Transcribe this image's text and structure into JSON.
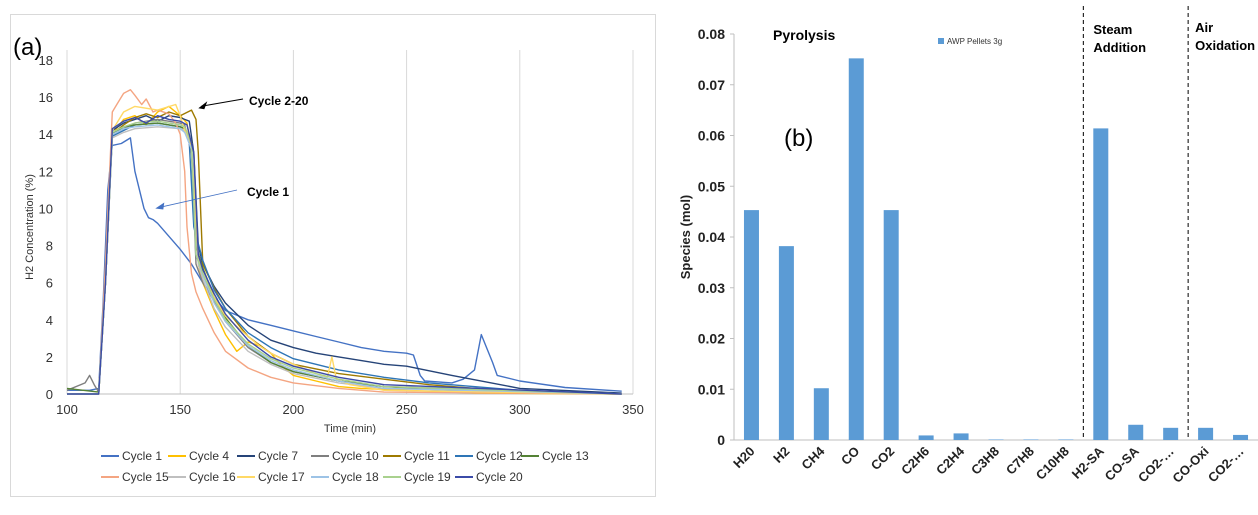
{
  "figure": {
    "panel_a_label": "(a)",
    "panel_b_label": "(b)"
  },
  "chart_data": [
    {
      "type": "line",
      "panel": "(a)",
      "title": "",
      "xlabel": "Time (min)",
      "ylabel": "H2 Concentration (%)",
      "xlim": [
        100,
        350
      ],
      "ylim": [
        0,
        18
      ],
      "xticks": [
        100,
        150,
        200,
        250,
        300,
        350
      ],
      "yticks": [
        0,
        2,
        4,
        6,
        8,
        10,
        12,
        14,
        16,
        18
      ],
      "grid": "vertical",
      "legend_position": "bottom",
      "annotations": [
        {
          "text": "Cycle 2-20",
          "points_to": [
            158,
            15.4
          ]
        },
        {
          "text": "Cycle 1",
          "points_to": [
            139,
            10.0
          ]
        }
      ],
      "series": [
        {
          "name": "Cycle 1",
          "color": "#4472c4",
          "x": [
            100,
            110,
            114,
            116,
            118,
            120,
            124,
            128,
            130,
            134,
            136,
            138,
            140,
            145,
            150,
            155,
            160,
            165,
            170,
            180,
            190,
            200,
            210,
            220,
            230,
            240,
            250,
            253,
            256,
            258,
            270,
            275,
            280,
            283,
            285,
            288,
            290,
            300,
            320,
            345
          ],
          "y": [
            0.2,
            0.2,
            0.3,
            5,
            11,
            13.4,
            13.5,
            13.8,
            12,
            10,
            9.5,
            9.4,
            9.2,
            8.5,
            7.8,
            7,
            6,
            5.2,
            4.5,
            4,
            3.7,
            3.4,
            3.1,
            2.8,
            2.5,
            2.3,
            2.2,
            2.1,
            1.0,
            0.7,
            0.6,
            0.8,
            1.3,
            3.2,
            2.6,
            1.7,
            1.0,
            0.7,
            0.35,
            0.15
          ]
        },
        {
          "name": "Cycle 4",
          "color": "#ffc000",
          "x": [
            100,
            114,
            117,
            120,
            125,
            130,
            135,
            140,
            145,
            150,
            153,
            155,
            158,
            160,
            165,
            170,
            175,
            180,
            185,
            190,
            195,
            200,
            210,
            220,
            230,
            250,
            280,
            345
          ],
          "y": [
            0,
            0,
            6,
            14,
            14.8,
            15,
            14.5,
            15.2,
            15.5,
            15,
            14.6,
            13,
            7,
            6,
            4.5,
            3.2,
            2.3,
            2.8,
            2.6,
            2.2,
            1.5,
            1.0,
            0.7,
            0.4,
            0.3,
            0.2,
            0.05,
            0
          ]
        },
        {
          "name": "Cycle 7",
          "color": "#264478",
          "x": [
            100,
            114,
            117,
            120,
            125,
            130,
            135,
            140,
            145,
            150,
            152,
            154,
            156,
            158,
            160,
            165,
            170,
            180,
            190,
            200,
            210,
            220,
            230,
            240,
            250,
            270,
            300,
            345
          ],
          "y": [
            0,
            0,
            6,
            14.2,
            14.6,
            14.8,
            15,
            14.7,
            15,
            14.9,
            14.8,
            14.7,
            13,
            8,
            7,
            5.8,
            4.9,
            3.7,
            2.9,
            2.5,
            2.2,
            2.0,
            1.8,
            1.6,
            1.5,
            1.0,
            0.3,
            0.05
          ]
        },
        {
          "name": "Cycle 10",
          "color": "#7f7f7f",
          "x": [
            100,
            108,
            110,
            112,
            114,
            117,
            120,
            125,
            130,
            140,
            150,
            152,
            155,
            157,
            160,
            165,
            170,
            180,
            190,
            200,
            220,
            240,
            345
          ],
          "y": [
            0.2,
            0.6,
            1.0,
            0.5,
            0.1,
            6,
            14,
            14.3,
            14.6,
            14.8,
            14.6,
            14.5,
            13,
            7,
            6,
            5,
            3.9,
            2.5,
            1.7,
            1.2,
            0.7,
            0.4,
            0
          ]
        },
        {
          "name": "Cycle 11",
          "color": "#9e7a00",
          "x": [
            100,
            114,
            117,
            120,
            125,
            130,
            135,
            140,
            145,
            150,
            155,
            157,
            158,
            160,
            165,
            170,
            180,
            190,
            200,
            220,
            240,
            260,
            300,
            345
          ],
          "y": [
            0,
            0,
            6,
            14,
            14.5,
            14.9,
            15.1,
            14.9,
            15.2,
            15,
            15.3,
            14.8,
            13,
            7,
            5.7,
            4.6,
            3.1,
            2.2,
            1.6,
            1.1,
            0.8,
            0.5,
            0.1,
            0
          ]
        },
        {
          "name": "Cycle 12",
          "color": "#2e75b6",
          "x": [
            100,
            114,
            117,
            120,
            125,
            130,
            140,
            150,
            152,
            154,
            156,
            160,
            165,
            170,
            180,
            190,
            200,
            220,
            240,
            260,
            300,
            345
          ],
          "y": [
            0,
            0,
            6,
            13.9,
            14.2,
            14.5,
            14.6,
            14.4,
            14.3,
            13.5,
            9,
            7.2,
            5.6,
            4.6,
            3.3,
            2.5,
            1.9,
            1.3,
            0.9,
            0.6,
            0.2,
            0
          ]
        },
        {
          "name": "Cycle 13",
          "color": "#548235",
          "x": [
            100,
            114,
            117,
            120,
            125,
            130,
            140,
            150,
            152,
            155,
            157,
            160,
            165,
            170,
            180,
            190,
            200,
            220,
            240,
            280,
            345
          ],
          "y": [
            0.3,
            0.1,
            6,
            14,
            14.4,
            14.5,
            14.6,
            14.4,
            14.3,
            13.6,
            8,
            6.8,
            5.2,
            4.1,
            2.6,
            1.7,
            1.2,
            0.7,
            0.4,
            0.1,
            0
          ]
        },
        {
          "name": "Cycle 15",
          "color": "#f4a582",
          "x": [
            100,
            114,
            117,
            120,
            122,
            125,
            128,
            130,
            133,
            135,
            138,
            140,
            145,
            148,
            150,
            152,
            153,
            155,
            157,
            160,
            165,
            170,
            180,
            190,
            200,
            220,
            240,
            345
          ],
          "y": [
            0,
            0,
            7,
            15.2,
            15.6,
            16.2,
            16.4,
            16.1,
            15.6,
            15.9,
            15.2,
            15.3,
            15.1,
            14.6,
            14.0,
            12,
            9,
            6.5,
            5.5,
            4.6,
            3.3,
            2.3,
            1.4,
            0.9,
            0.6,
            0.3,
            0.1,
            0
          ]
        },
        {
          "name": "Cycle 16",
          "color": "#bfbfbf",
          "x": [
            100,
            114,
            117,
            120,
            125,
            130,
            140,
            150,
            152,
            155,
            158,
            160,
            165,
            170,
            180,
            190,
            200,
            220,
            240,
            345
          ],
          "y": [
            0,
            0,
            6,
            13.8,
            14.1,
            14.3,
            14.4,
            14.3,
            14.2,
            13.5,
            7,
            6.2,
            4.6,
            3.6,
            2.3,
            1.6,
            1.1,
            0.6,
            0.3,
            0
          ]
        },
        {
          "name": "Cycle 17",
          "color": "#ffd966",
          "x": [
            100,
            114,
            117,
            120,
            125,
            130,
            140,
            148,
            150,
            152,
            155,
            158,
            160,
            165,
            170,
            180,
            185,
            190,
            200,
            210,
            215,
            217,
            219,
            225,
            240,
            345
          ],
          "y": [
            0,
            0,
            6,
            14.2,
            15.2,
            15.5,
            15.3,
            15.6,
            15,
            14.2,
            13.2,
            7.5,
            6.5,
            5.2,
            4.2,
            3.1,
            2.6,
            2.2,
            1.6,
            1.1,
            0.9,
            2.0,
            0.8,
            0.5,
            0.2,
            0
          ]
        },
        {
          "name": "Cycle 18",
          "color": "#9dc3e6",
          "x": [
            100,
            114,
            117,
            120,
            125,
            130,
            140,
            150,
            152,
            155,
            157,
            160,
            165,
            170,
            180,
            190,
            200,
            220,
            240,
            345
          ],
          "y": [
            0,
            0,
            6,
            14,
            14.3,
            14.4,
            14.5,
            14.3,
            14.1,
            13.2,
            7.5,
            6.4,
            4.9,
            3.9,
            2.6,
            1.8,
            1.3,
            0.7,
            0.3,
            0
          ]
        },
        {
          "name": "Cycle 19",
          "color": "#a9d18e",
          "x": [
            100,
            114,
            117,
            120,
            125,
            130,
            140,
            150,
            152,
            155,
            157,
            160,
            165,
            170,
            180,
            190,
            200,
            220,
            240,
            345
          ],
          "y": [
            0,
            0,
            6,
            14.1,
            14.4,
            14.6,
            14.7,
            14.5,
            14.4,
            13.5,
            7.5,
            6.5,
            5.1,
            4.0,
            2.7,
            1.9,
            1.4,
            0.8,
            0.4,
            0
          ]
        },
        {
          "name": "Cycle 20",
          "color": "#3b4ba8",
          "x": [
            100,
            114,
            117,
            120,
            125,
            130,
            135,
            140,
            145,
            150,
            153,
            156,
            158,
            160,
            165,
            170,
            180,
            190,
            200,
            220,
            240,
            345
          ],
          "y": [
            0,
            0,
            6,
            14.3,
            14.7,
            14.9,
            14.6,
            15,
            14.8,
            14.7,
            14.5,
            13,
            7.5,
            6.7,
            5.4,
            4.3,
            2.9,
            2.0,
            1.5,
            0.9,
            0.5,
            0
          ]
        }
      ]
    },
    {
      "type": "bar",
      "panel": "(b)",
      "title": "",
      "xlabel": "",
      "ylabel": "Species (mol)",
      "ylim": [
        0,
        0.08
      ],
      "yticks": [
        0,
        0.01,
        0.02,
        0.03,
        0.04,
        0.05,
        0.06,
        0.07,
        0.08
      ],
      "ytick_labels": [
        "0",
        "0.01",
        "0.02",
        "0.03",
        "0.04",
        "0.05",
        "0.06",
        "0.07",
        "0.08"
      ],
      "grid": false,
      "legend_position": "top-center",
      "categories": [
        "H20",
        "H2",
        "CH4",
        "CO",
        "CO2",
        "C2H6",
        "C2H4",
        "C3H8",
        "C7H8",
        "C10H8",
        "H2-SA",
        "CO-SA",
        "CO2-…",
        "CO-Oxi",
        "CO2-…"
      ],
      "series": [
        {
          "name": "AWP Pellets 3g",
          "color": "#5b9bd5",
          "values": [
            0.0453,
            0.0382,
            0.0102,
            0.0752,
            0.0453,
            0.0009,
            0.0013,
            0.0001,
            0.0001,
            0.0001,
            0.0614,
            0.003,
            0.0024,
            0.0024,
            0.001
          ]
        }
      ],
      "annotations": [
        {
          "text": "Pyrolysis",
          "region": "pyrolysis"
        },
        {
          "text": "Steam",
          "region": "steam"
        },
        {
          "text": "Addition",
          "region": "steam"
        },
        {
          "text": "Air",
          "region": "air"
        },
        {
          "text": "Oxidation",
          "region": "air"
        }
      ]
    }
  ]
}
